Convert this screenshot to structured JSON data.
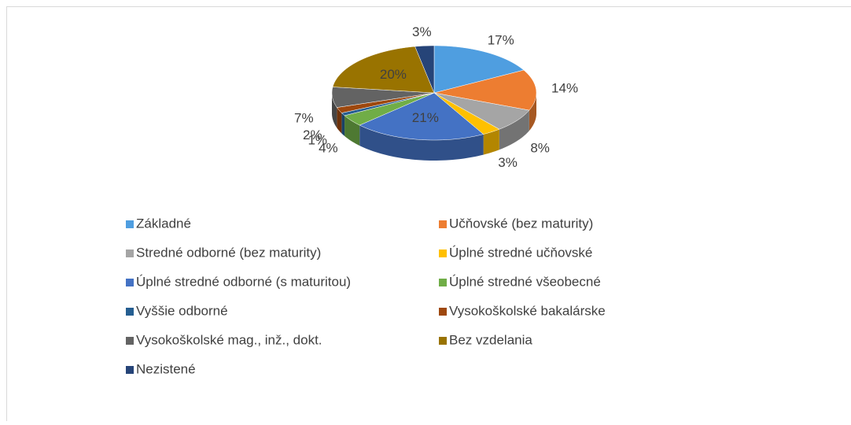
{
  "chart_data": {
    "type": "pie3d",
    "categories": [
      "Základné",
      "Učňovské (bez maturity)",
      "Stredné odborné (bez maturity)",
      "Úplné stredné učňovské",
      "Úplné stredné odborné (s maturitou)",
      "Úplné stredné všeobecné",
      "Vyššie odborné",
      "Vysokoškolské bakalárske",
      "Vysokoškolské mag., inž., dokt.",
      "Bez vzdelania",
      "Nezistené"
    ],
    "values": [
      17,
      14,
      8,
      3,
      21,
      4,
      1,
      2,
      7,
      20,
      3
    ],
    "value_labels": [
      "17%",
      "14%",
      "8%",
      "3%",
      "21%",
      "4%",
      "1%",
      "2%",
      "7%",
      "20%",
      "3%"
    ],
    "colors": [
      "#4f9ee0",
      "#ed7d31",
      "#a5a5a5",
      "#ffc000",
      "#4472c4",
      "#70ad47",
      "#255e91",
      "#9e480e",
      "#636363",
      "#997300",
      "#264478"
    ],
    "legend": "bottom"
  }
}
